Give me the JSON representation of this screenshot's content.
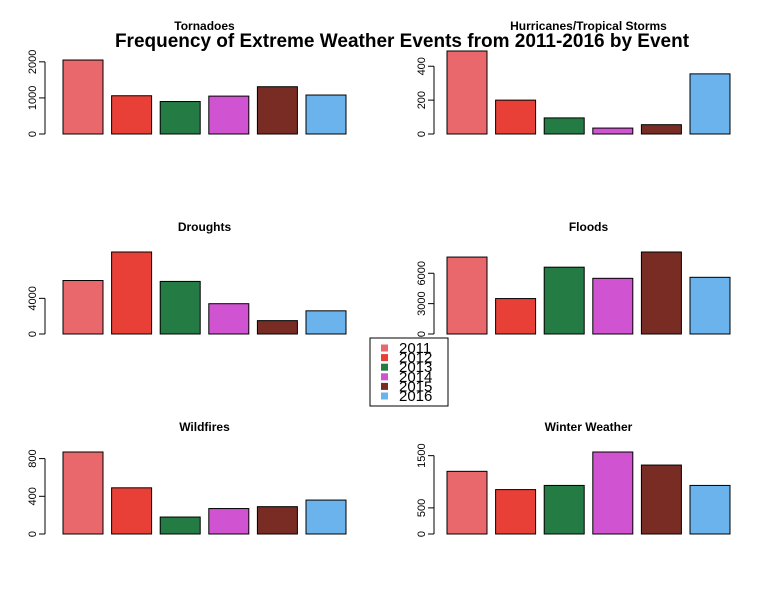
{
  "figure": {
    "title": "Frequency of Extreme Weather Events from 2011-2016 by Event"
  },
  "legend": {
    "items": [
      {
        "label": "2011",
        "color": "#E9686C"
      },
      {
        "label": "2012",
        "color": "#E84036"
      },
      {
        "label": "2013",
        "color": "#247B43"
      },
      {
        "label": "2014",
        "color": "#D053D1"
      },
      {
        "label": "2015",
        "color": "#792C24"
      },
      {
        "label": "2016",
        "color": "#6BB3EC"
      }
    ]
  },
  "chart_data": [
    {
      "type": "bar",
      "title": "Tornadoes",
      "categories": [
        "2011",
        "2012",
        "2013",
        "2014",
        "2015",
        "2016"
      ],
      "values": [
        2050,
        1060,
        900,
        1050,
        1310,
        1080
      ],
      "ylim": [
        0,
        2300
      ],
      "yticks": [
        0,
        1000,
        2000
      ],
      "ytick_labels": [
        "0",
        "1000",
        "2000"
      ]
    },
    {
      "type": "bar",
      "title": "Hurricanes/Tropical Storms",
      "categories": [
        "2011",
        "2012",
        "2013",
        "2014",
        "2015",
        "2016"
      ],
      "values": [
        490,
        200,
        95,
        35,
        55,
        355
      ],
      "ylim": [
        0,
        490
      ],
      "yticks": [
        0,
        200,
        400
      ],
      "ytick_labels": [
        "0",
        "200",
        "400"
      ]
    },
    {
      "type": "bar",
      "title": "Droughts",
      "categories": [
        "2011",
        "2012",
        "2013",
        "2014",
        "2015",
        "2016"
      ],
      "values": [
        6000,
        9200,
        5900,
        3400,
        1500,
        2600
      ],
      "ylim": [
        0,
        9200
      ],
      "yticks": [
        0,
        4000
      ],
      "ytick_labels": [
        "0",
        "4000"
      ]
    },
    {
      "type": "bar",
      "title": "Floods",
      "categories": [
        "2011",
        "2012",
        "2013",
        "2014",
        "2015",
        "2016"
      ],
      "values": [
        7600,
        3500,
        6600,
        5500,
        8100,
        5600
      ],
      "ylim": [
        0,
        8100
      ],
      "yticks": [
        0,
        3000,
        6000
      ],
      "ytick_labels": [
        "0",
        "3000",
        "6000"
      ]
    },
    {
      "type": "bar",
      "title": "Wildfires",
      "categories": [
        "2011",
        "2012",
        "2013",
        "2014",
        "2015",
        "2016"
      ],
      "values": [
        870,
        490,
        180,
        270,
        290,
        360
      ],
      "ylim": [
        0,
        870
      ],
      "yticks": [
        0,
        400,
        800
      ],
      "ytick_labels": [
        "0",
        "400",
        "800"
      ]
    },
    {
      "type": "bar",
      "title": "Winter Weather",
      "categories": [
        "2011",
        "2012",
        "2013",
        "2014",
        "2015",
        "2016"
      ],
      "values": [
        1200,
        850,
        930,
        1570,
        1320,
        930
      ],
      "ylim": [
        0,
        1570
      ],
      "yticks": [
        0,
        500,
        1500
      ],
      "ytick_labels": [
        "0",
        "500",
        "1500"
      ]
    }
  ]
}
